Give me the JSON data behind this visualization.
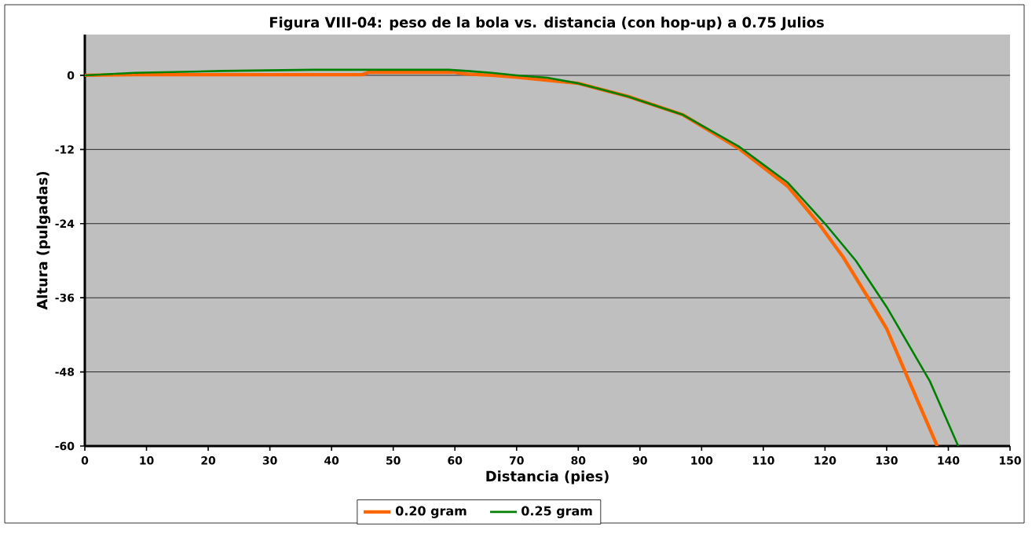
{
  "chart_data": {
    "type": "line",
    "title": "Figura VIII-04: peso de la bola vs. distancia (con hop-up) a 0.75 Julios",
    "xlabel": "Distancia (pies)",
    "ylabel": "Altura (pulgadas)",
    "xlim": [
      0,
      150
    ],
    "xticks": [
      0,
      10,
      20,
      30,
      40,
      50,
      60,
      70,
      80,
      90,
      100,
      110,
      120,
      130,
      140,
      150
    ],
    "ylim": [
      -60,
      6.6
    ],
    "yticks": [
      0,
      -12,
      -24,
      -36,
      -48,
      -60
    ],
    "grid": "y",
    "legend": "bottom",
    "marker": "none",
    "line_style": "solid",
    "series": [
      {
        "name": "0.20 gram",
        "color": "#ff6600",
        "x": [
          0,
          8,
          45,
          46,
          60,
          62,
          66,
          70,
          80,
          88,
          97,
          106,
          114,
          119,
          123,
          127,
          130,
          133,
          138.2
        ],
        "values": [
          0,
          0.1,
          0.1,
          0.5,
          0.5,
          0.2,
          0,
          -0.3,
          -1.3,
          -3.4,
          -6.4,
          -11.8,
          -18,
          -24,
          -29.5,
          -36,
          -41,
          -48,
          -60
        ]
      },
      {
        "name": "0.25 gram",
        "color": "#008000",
        "x": [
          0,
          8,
          22,
          37,
          45,
          59,
          62,
          66,
          70,
          75,
          80,
          88,
          97,
          106,
          114,
          120,
          125,
          130,
          137,
          141.6
        ],
        "values": [
          0,
          0.4,
          0.7,
          0.9,
          0.9,
          0.9,
          0.7,
          0.4,
          0,
          -0.4,
          -1.3,
          -3.4,
          -6.4,
          -11.5,
          -17.4,
          -24,
          -30,
          -37.5,
          -49.5,
          -60
        ]
      }
    ]
  }
}
